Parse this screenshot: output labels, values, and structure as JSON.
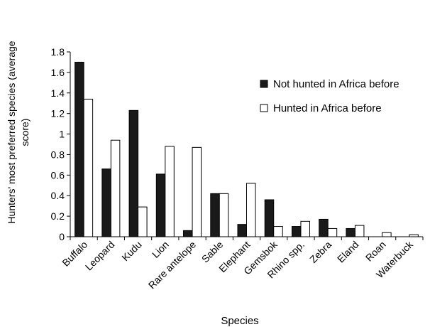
{
  "chart_data": {
    "type": "bar",
    "title": "",
    "xlabel": "Species",
    "ylabel": "Hunters' most preferred species (average score)",
    "ylabel_lines": [
      "Hunters' most preferred species (average",
      "score)"
    ],
    "ylim": [
      0,
      1.8
    ],
    "yticks": [
      "0",
      "0.2",
      "0.4",
      "0.6",
      "0.8",
      "1",
      "1.2",
      "1.4",
      "1.6",
      "1.8"
    ],
    "ytick_values": [
      0,
      0.2,
      0.4,
      0.6,
      0.8,
      1.0,
      1.2,
      1.4,
      1.6,
      1.8
    ],
    "grid": false,
    "legend_position": "top-right",
    "categories": [
      "Buffalo",
      "Leopard",
      "Kudu",
      "Lion",
      "Rare antelope",
      "Sable",
      "Elephant",
      "Gemsbok",
      "Rhino spp.",
      "Zebra",
      "Eland",
      "Roan",
      "Waterbuck"
    ],
    "series": [
      {
        "name": "Not hunted in Africa before",
        "color": "#1a1a1a",
        "values": [
          1.7,
          0.66,
          1.23,
          0.61,
          0.06,
          0.42,
          0.12,
          0.36,
          0.1,
          0.17,
          0.08,
          0.0,
          0.0
        ]
      },
      {
        "name": "Hunted in Africa before",
        "color": "#ffffff",
        "values": [
          1.34,
          0.94,
          0.29,
          0.88,
          0.87,
          0.42,
          0.52,
          0.1,
          0.15,
          0.08,
          0.11,
          0.04,
          0.02
        ]
      }
    ]
  }
}
